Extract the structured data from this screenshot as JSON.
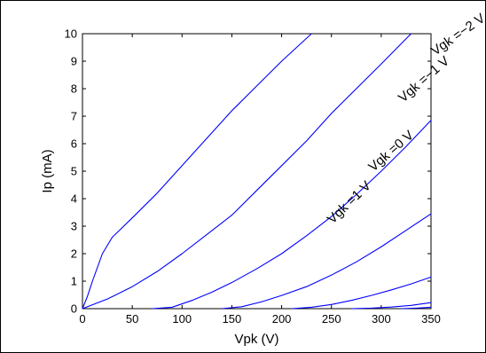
{
  "chart_data": {
    "type": "line",
    "xlabel": "Vpk (V)",
    "ylabel": "Ip (mA)",
    "xlim": [
      0,
      350
    ],
    "ylim": [
      0,
      10
    ],
    "xticks": [
      0,
      50,
      100,
      150,
      200,
      250,
      300,
      350
    ],
    "yticks": [
      0,
      1,
      2,
      3,
      4,
      5,
      6,
      7,
      8,
      9,
      10
    ],
    "grid": false,
    "color": "#0000ff",
    "series": [
      {
        "name": "Vgk =1 V",
        "x": [
          0,
          5,
          10,
          20,
          30,
          50,
          75,
          100,
          125,
          150,
          175,
          200,
          230
        ],
        "y": [
          0,
          0.45,
          1.0,
          2.0,
          2.6,
          3.3,
          4.2,
          5.2,
          6.2,
          7.2,
          8.1,
          9.0,
          10.0
        ]
      },
      {
        "name": "Vgk =0 V",
        "x": [
          0,
          25,
          50,
          75,
          100,
          125,
          150,
          175,
          200,
          225,
          250,
          275,
          300,
          330
        ],
        "y": [
          0,
          0.35,
          0.8,
          1.35,
          2.0,
          2.7,
          3.4,
          4.3,
          5.2,
          6.1,
          7.1,
          8.0,
          8.9,
          10.0
        ]
      },
      {
        "name": "Vgk =−1 V",
        "x": [
          70,
          90,
          110,
          130,
          150,
          175,
          200,
          225,
          250,
          275,
          300,
          325,
          350
        ],
        "y": [
          0,
          0.05,
          0.3,
          0.6,
          0.95,
          1.45,
          2.0,
          2.65,
          3.35,
          4.15,
          5.0,
          5.9,
          6.85
        ]
      },
      {
        "name": "Vgk =−2 V",
        "x": [
          140,
          160,
          180,
          200,
          225,
          250,
          275,
          300,
          325,
          350
        ],
        "y": [
          0,
          0.07,
          0.25,
          0.48,
          0.8,
          1.22,
          1.7,
          2.25,
          2.85,
          3.45
        ]
      },
      {
        "name": "",
        "x": [
          210,
          230,
          250,
          270,
          290,
          310,
          330,
          350
        ],
        "y": [
          0,
          0.05,
          0.15,
          0.3,
          0.48,
          0.68,
          0.9,
          1.15
        ]
      },
      {
        "name": "",
        "x": [
          270,
          290,
          310,
          330,
          350
        ],
        "y": [
          0,
          0.02,
          0.06,
          0.12,
          0.22
        ]
      },
      {
        "name": "",
        "x": [
          320,
          335,
          350
        ],
        "y": [
          0,
          0.02,
          0.05
        ]
      }
    ],
    "annotations": [
      "Vgk =1 V",
      "Vgk =0 V",
      "Vgk =−1 V",
      "Vgk =−2 V"
    ]
  }
}
